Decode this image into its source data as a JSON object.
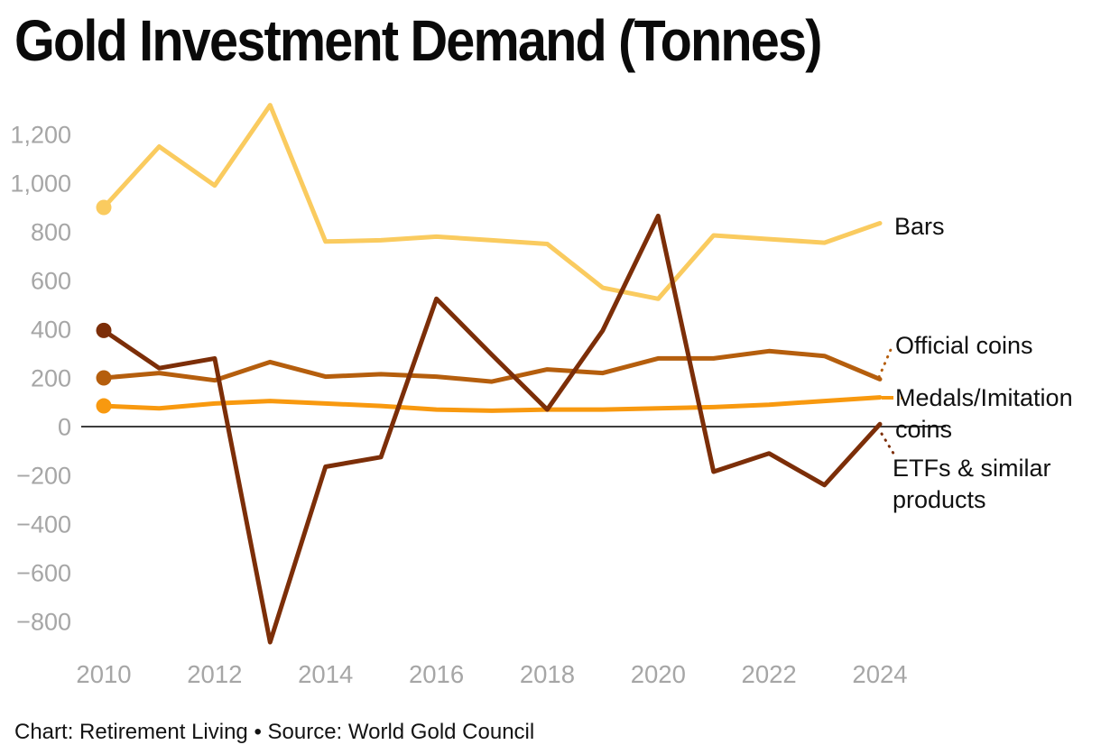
{
  "title": "Gold Investment Demand (Tonnes)",
  "footer": "Chart: Retirement Living • Source: World Gold Council",
  "colors": {
    "background": "#FFFFFF",
    "axis_label": "#A6A6A6",
    "zero_line": "#3D3D3D",
    "legend_text": "#101010",
    "title_text": "#0A0A0A",
    "bars_series": "#FACB5F",
    "official_coins_series": "#B55E0D",
    "medals_series": "#F8990F",
    "etfs_series": "#7C2E08"
  },
  "legend": {
    "bars": "Bars",
    "official_coins": "Official coins",
    "medals": "Medals/Imitation coins",
    "etfs": "ETFs & similar products"
  },
  "chart_data": {
    "type": "line",
    "title": "Gold Investment Demand (Tonnes)",
    "xlabel": "",
    "ylabel": "Tonnes",
    "x": [
      2010,
      2011,
      2012,
      2013,
      2014,
      2015,
      2016,
      2017,
      2018,
      2019,
      2020,
      2021,
      2022,
      2023,
      2024
    ],
    "series": [
      {
        "name": "Bars",
        "color": "#FACB5F",
        "values": [
          900,
          1150,
          990,
          1320,
          760,
          765,
          780,
          765,
          750,
          570,
          525,
          785,
          770,
          755,
          835
        ]
      },
      {
        "name": "Official coins",
        "color": "#B55E0D",
        "values": [
          200,
          220,
          190,
          265,
          205,
          215,
          205,
          185,
          235,
          220,
          280,
          280,
          310,
          290,
          195
        ]
      },
      {
        "name": "Medals/Imitation coins",
        "color": "#F8990F",
        "values": [
          85,
          75,
          95,
          105,
          95,
          85,
          70,
          65,
          70,
          70,
          75,
          80,
          90,
          105,
          120
        ]
      },
      {
        "name": "ETFs & similar products",
        "color": "#7C2E08",
        "values": [
          395,
          240,
          280,
          -885,
          -165,
          -125,
          525,
          295,
          70,
          395,
          865,
          -185,
          -110,
          -240,
          10
        ]
      }
    ],
    "xticks": [
      2010,
      2012,
      2014,
      2016,
      2018,
      2020,
      2022,
      2024
    ],
    "xtick_labels": [
      "2010",
      "2012",
      "2014",
      "2016",
      "2018",
      "2020",
      "2022",
      "2024"
    ],
    "yticks": [
      1200,
      1000,
      800,
      600,
      400,
      200,
      0,
      -200,
      -400,
      -600,
      -800
    ],
    "ytick_labels": [
      "1,200",
      "1,000",
      "800",
      "600",
      "400",
      "200",
      "0",
      "−200",
      "−400",
      "−600",
      "−800"
    ],
    "ylim": [
      -920,
      1380
    ],
    "grid": false,
    "zero_baseline": true,
    "start_point_dots": true,
    "legend_position": "right"
  }
}
